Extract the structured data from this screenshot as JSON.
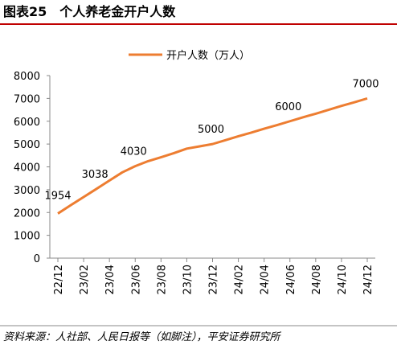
{
  "chart_data": {
    "type": "line",
    "title": "图表25　个人养老金开户人数",
    "source": "资料来源：人社部、人民日报等（如脚注），平安证券研究所",
    "categories": [
      "22/12",
      null,
      "23/02",
      null,
      "23/04",
      null,
      "23/06",
      null,
      "23/08",
      null,
      "23/10",
      null,
      "23/12",
      null,
      "24/02",
      null,
      "24/04",
      null,
      "24/06",
      null,
      "24/08",
      null,
      "24/10",
      null,
      "24/12"
    ],
    "series": [
      {
        "name": "开户人数（万人）",
        "color": "#ED7D31",
        "values": [
          1954,
          2320,
          2680,
          3038,
          3400,
          3760,
          4030,
          4250,
          4420,
          4600,
          4800,
          4900,
          5000,
          5170,
          5340,
          5500,
          5670,
          5830,
          6000,
          6170,
          6330,
          6500,
          6670,
          6830,
          7000
        ],
        "value_labels": [
          "1954",
          null,
          null,
          "3038",
          null,
          null,
          "4030",
          null,
          null,
          null,
          null,
          null,
          "5000",
          null,
          null,
          null,
          null,
          null,
          "6000",
          null,
          null,
          null,
          null,
          null,
          "7000"
        ]
      }
    ],
    "ylim": [
      0,
      8000
    ],
    "yticks": [
      0,
      1000,
      2000,
      3000,
      4000,
      5000,
      6000,
      7000,
      8000
    ],
    "grid": false,
    "legend": "top"
  }
}
